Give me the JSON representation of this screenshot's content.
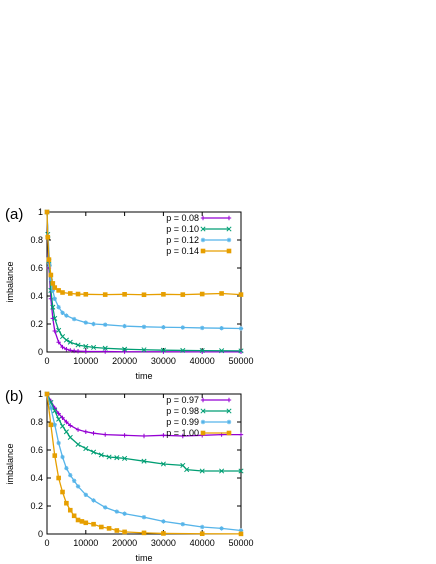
{
  "chart_data": [
    {
      "type": "line",
      "panel_label": "(a)",
      "xlabel": "time",
      "ylabel": "imbalance",
      "xlim": [
        0,
        50000
      ],
      "ylim": [
        0,
        1
      ],
      "xticks": [
        0,
        10000,
        20000,
        30000,
        40000,
        50000
      ],
      "yticks": [
        0,
        0.2,
        0.4,
        0.6,
        0.8,
        1
      ],
      "legend_position": "top-right",
      "series": [
        {
          "name": "p = 0.08",
          "color": "#9400d3",
          "marker": "plus",
          "x": [
            0,
            200,
            500,
            1000,
            1500,
            2000,
            3000,
            4000,
            5000,
            6000,
            7000,
            8000,
            10000,
            15000,
            20000,
            30000,
            40000,
            50000
          ],
          "y": [
            1.0,
            0.82,
            0.6,
            0.38,
            0.24,
            0.15,
            0.07,
            0.035,
            0.02,
            0.012,
            0.008,
            0.006,
            0.004,
            0.003,
            0.002,
            0.002,
            0.001,
            0.001
          ]
        },
        {
          "name": "p = 0.10",
          "color": "#009e73",
          "marker": "cross",
          "x": [
            0,
            200,
            500,
            1000,
            1500,
            2000,
            3000,
            4000,
            5000,
            6000,
            8000,
            10000,
            12000,
            15000,
            20000,
            25000,
            30000,
            35000,
            40000,
            45000,
            50000
          ],
          "y": [
            1.0,
            0.84,
            0.65,
            0.44,
            0.32,
            0.24,
            0.155,
            0.11,
            0.085,
            0.07,
            0.05,
            0.04,
            0.033,
            0.027,
            0.02,
            0.016,
            0.013,
            0.011,
            0.01,
            0.009,
            0.008
          ]
        },
        {
          "name": "p = 0.12",
          "color": "#56b4e9",
          "marker": "star",
          "x": [
            0,
            300,
            700,
            1000,
            1500,
            2000,
            3000,
            4000,
            5000,
            7000,
            10000,
            12000,
            15000,
            20000,
            25000,
            30000,
            35000,
            40000,
            45000,
            50000
          ],
          "y": [
            1.0,
            0.82,
            0.62,
            0.52,
            0.44,
            0.38,
            0.32,
            0.28,
            0.26,
            0.235,
            0.21,
            0.2,
            0.195,
            0.185,
            0.18,
            0.177,
            0.175,
            0.172,
            0.17,
            0.168
          ]
        },
        {
          "name": "p = 0.14",
          "color": "#e69f00",
          "marker": "box",
          "x": [
            0,
            200,
            500,
            1000,
            1500,
            2000,
            3000,
            4000,
            6000,
            8000,
            10000,
            15000,
            20000,
            25000,
            30000,
            35000,
            40000,
            45000,
            50000
          ],
          "y": [
            1.0,
            0.82,
            0.66,
            0.55,
            0.49,
            0.46,
            0.44,
            0.425,
            0.418,
            0.414,
            0.412,
            0.41,
            0.412,
            0.409,
            0.412,
            0.41,
            0.414,
            0.418,
            0.41
          ]
        }
      ]
    },
    {
      "type": "line",
      "panel_label": "(b)",
      "xlabel": "time",
      "ylabel": "imbalance",
      "xlim": [
        0,
        50000
      ],
      "ylim": [
        0,
        1
      ],
      "xticks": [
        0,
        10000,
        20000,
        30000,
        40000,
        50000
      ],
      "yticks": [
        0,
        0.2,
        0.4,
        0.6,
        0.8,
        1
      ],
      "legend_position": "top-right",
      "series": [
        {
          "name": "p = 0.97",
          "color": "#9400d3",
          "marker": "plus",
          "x": [
            0,
            1000,
            2000,
            3000,
            4000,
            5000,
            6000,
            8000,
            10000,
            12000,
            15000,
            20000,
            25000,
            30000,
            35000,
            40000,
            45000,
            50000
          ],
          "y": [
            1.0,
            0.95,
            0.9,
            0.86,
            0.83,
            0.8,
            0.775,
            0.745,
            0.73,
            0.72,
            0.71,
            0.705,
            0.7,
            0.705,
            0.7,
            0.705,
            0.71,
            0.71
          ]
        },
        {
          "name": "p = 0.98",
          "color": "#009e73",
          "marker": "cross",
          "x": [
            0,
            1000,
            2000,
            3000,
            4000,
            5000,
            6000,
            8000,
            10000,
            12000,
            14000,
            16000,
            18000,
            20000,
            25000,
            30000,
            35000,
            36000,
            40000,
            45000,
            50000
          ],
          "y": [
            1.0,
            0.94,
            0.88,
            0.82,
            0.77,
            0.73,
            0.69,
            0.64,
            0.61,
            0.585,
            0.565,
            0.55,
            0.545,
            0.54,
            0.52,
            0.5,
            0.49,
            0.46,
            0.45,
            0.45,
            0.45
          ]
        },
        {
          "name": "p = 0.99",
          "color": "#56b4e9",
          "marker": "star",
          "x": [
            0,
            1000,
            2000,
            3000,
            4000,
            5000,
            6000,
            7000,
            8000,
            10000,
            12000,
            15000,
            18000,
            20000,
            25000,
            30000,
            35000,
            40000,
            45000,
            50000
          ],
          "y": [
            1.0,
            0.9,
            0.78,
            0.65,
            0.55,
            0.47,
            0.42,
            0.38,
            0.34,
            0.28,
            0.24,
            0.19,
            0.16,
            0.145,
            0.12,
            0.09,
            0.07,
            0.05,
            0.04,
            0.025
          ]
        },
        {
          "name": "p = 1.00",
          "color": "#e69f00",
          "marker": "box",
          "x": [
            0,
            1000,
            2000,
            3000,
            4000,
            5000,
            6000,
            7000,
            8000,
            9000,
            10000,
            12000,
            14000,
            16000,
            18000,
            20000,
            25000,
            30000,
            40000,
            50000
          ],
          "y": [
            1.0,
            0.78,
            0.56,
            0.4,
            0.3,
            0.22,
            0.17,
            0.13,
            0.1,
            0.09,
            0.08,
            0.07,
            0.05,
            0.04,
            0.025,
            0.015,
            0.008,
            0.004,
            0.002,
            0.001
          ]
        }
      ]
    }
  ]
}
